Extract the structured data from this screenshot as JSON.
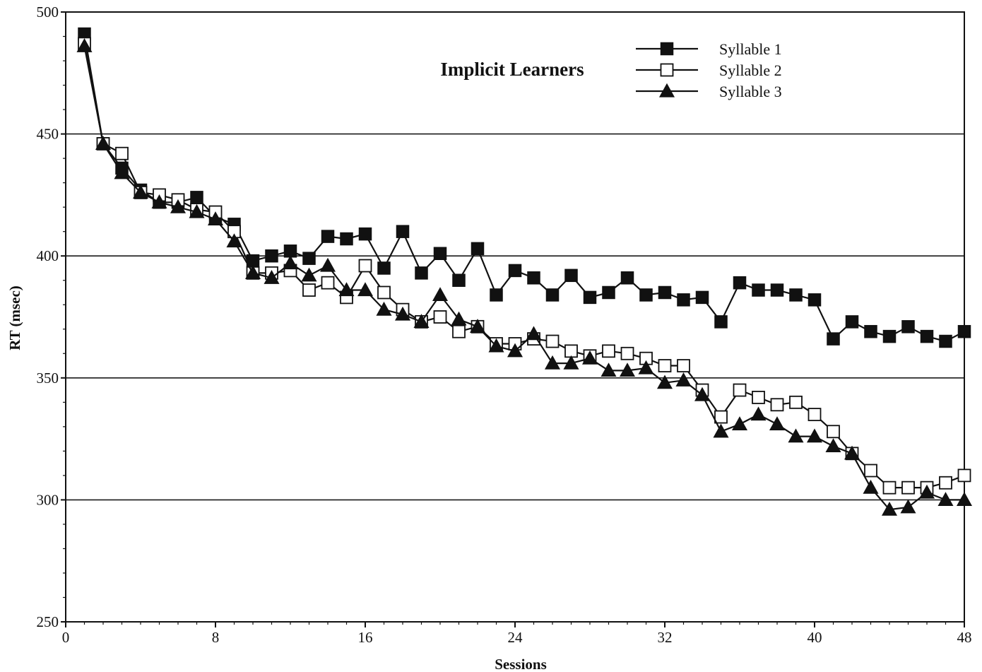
{
  "chart_data": {
    "type": "line",
    "title": "Implicit Learners",
    "xlabel": "Sessions",
    "ylabel": "RT  (msec)",
    "xlim": [
      0,
      48
    ],
    "ylim": [
      250,
      500
    ],
    "xticks": [
      0,
      8,
      16,
      24,
      32,
      40,
      48
    ],
    "yticks": [
      250,
      300,
      350,
      400,
      450,
      500
    ],
    "grid": "horizontal",
    "legend_position": "top-right",
    "x": [
      1,
      2,
      3,
      4,
      5,
      6,
      7,
      8,
      9,
      10,
      11,
      12,
      13,
      14,
      15,
      16,
      17,
      18,
      19,
      20,
      21,
      22,
      23,
      24,
      25,
      26,
      27,
      28,
      29,
      30,
      31,
      32,
      33,
      34,
      35,
      36,
      37,
      38,
      39,
      40,
      41,
      42,
      43,
      44,
      45,
      46,
      47,
      48
    ],
    "series": [
      {
        "name": "Syllable 1",
        "marker": "filled-square",
        "values": [
          491,
          446,
          436,
          427,
          422,
          422,
          424,
          416,
          413,
          398,
          400,
          402,
          399,
          408,
          407,
          409,
          395,
          410,
          393,
          401,
          390,
          403,
          384,
          394,
          391,
          384,
          392,
          383,
          385,
          391,
          384,
          385,
          382,
          383,
          373,
          389,
          386,
          386,
          384,
          382,
          366,
          373,
          369,
          367,
          371,
          367,
          365,
          369
        ]
      },
      {
        "name": "Syllable 2",
        "marker": "open-square",
        "values": [
          487,
          446,
          442,
          426,
          425,
          423,
          419,
          418,
          410,
          393,
          393,
          394,
          386,
          389,
          383,
          396,
          385,
          378,
          373,
          375,
          369,
          371,
          364,
          364,
          366,
          365,
          361,
          359,
          361,
          360,
          358,
          355,
          355,
          345,
          334,
          345,
          342,
          339,
          340,
          335,
          328,
          319,
          312,
          305,
          305,
          305,
          307,
          310
        ]
      },
      {
        "name": "Syllable 3",
        "marker": "filled-triangle",
        "values": [
          486,
          446,
          434,
          426,
          422,
          420,
          418,
          415,
          406,
          393,
          391,
          397,
          392,
          396,
          386,
          386,
          378,
          376,
          373,
          384,
          374,
          371,
          363,
          361,
          368,
          356,
          356,
          358,
          353,
          353,
          354,
          348,
          349,
          343,
          328,
          331,
          335,
          331,
          326,
          326,
          322,
          319,
          305,
          296,
          297,
          303,
          300,
          300
        ]
      }
    ]
  }
}
